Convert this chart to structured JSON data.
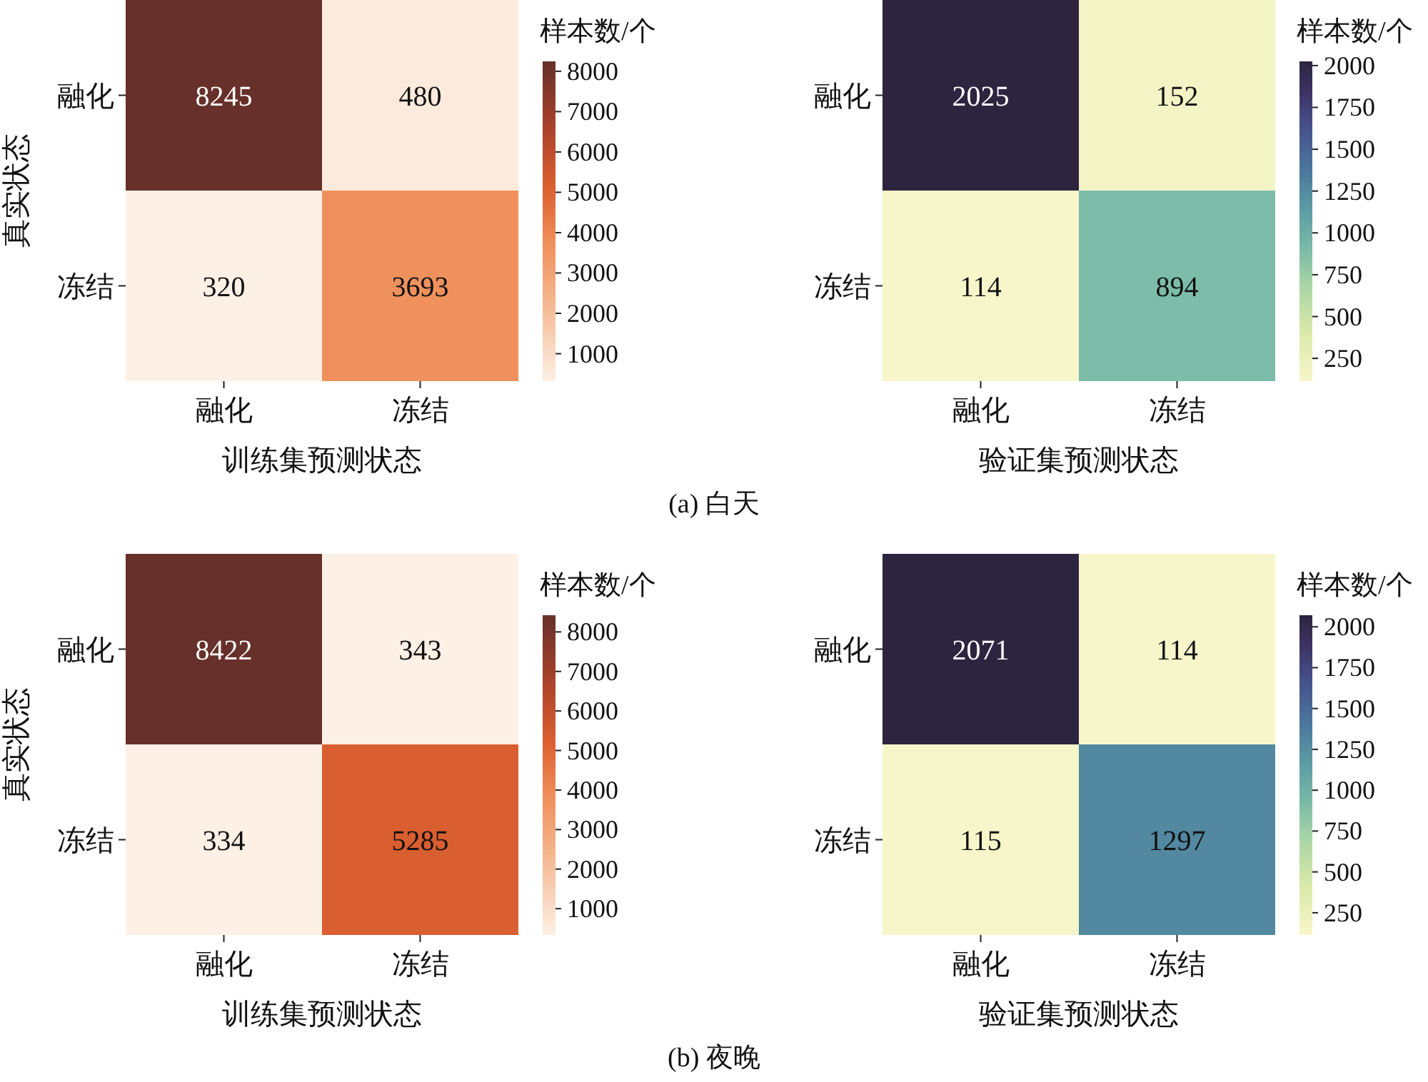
{
  "chart_data": [
    {
      "type": "heatmap",
      "categories": [
        "融化",
        "冻结"
      ],
      "y_categories": [
        "融化",
        "冻结"
      ],
      "cells": [
        [
          8245,
          480
        ],
        [
          320,
          3693
        ]
      ],
      "data_labels": true,
      "clim": [
        320,
        8245
      ],
      "cticks": [
        1000,
        2000,
        3000,
        4000,
        5000,
        6000,
        7000,
        8000
      ],
      "clabel": "样本数/个",
      "xlabel": "训练集预测状态",
      "ylabel": "真实状态",
      "annotations": [
        "(a) 白天"
      ]
    },
    {
      "type": "heatmap",
      "categories": [
        "融化",
        "冻结"
      ],
      "y_categories": [
        "融化",
        "冻结"
      ],
      "cells": [
        [
          2025,
          152
        ],
        [
          114,
          894
        ]
      ],
      "data_labels": true,
      "clim": [
        114,
        2025
      ],
      "cticks": [
        250,
        500,
        750,
        1000,
        1250,
        1500,
        1750,
        2000
      ],
      "clabel": "样本数/个",
      "xlabel": "验证集预测状态"
    },
    {
      "type": "heatmap",
      "categories": [
        "融化",
        "冻结"
      ],
      "y_categories": [
        "融化",
        "冻结"
      ],
      "cells": [
        [
          8422,
          343
        ],
        [
          334,
          5285
        ]
      ],
      "data_labels": true,
      "clim": [
        334,
        8422
      ],
      "cticks": [
        1000,
        2000,
        3000,
        4000,
        5000,
        6000,
        7000,
        8000
      ],
      "clabel": "样本数/个",
      "xlabel": "训练集预测状态",
      "ylabel": "真实状态",
      "annotations": [
        "(b) 夜晚"
      ]
    },
    {
      "type": "heatmap",
      "categories": [
        "融化",
        "冻结"
      ],
      "y_categories": [
        "融化",
        "冻结"
      ],
      "cells": [
        [
          2071,
          114
        ],
        [
          115,
          1297
        ]
      ],
      "data_labels": true,
      "clim": [
        114,
        2071
      ],
      "cticks": [
        250,
        500,
        750,
        1000,
        1250,
        1500,
        1750,
        2000
      ],
      "clabel": "样本数/个",
      "xlabel": "验证集预测状态"
    }
  ]
}
